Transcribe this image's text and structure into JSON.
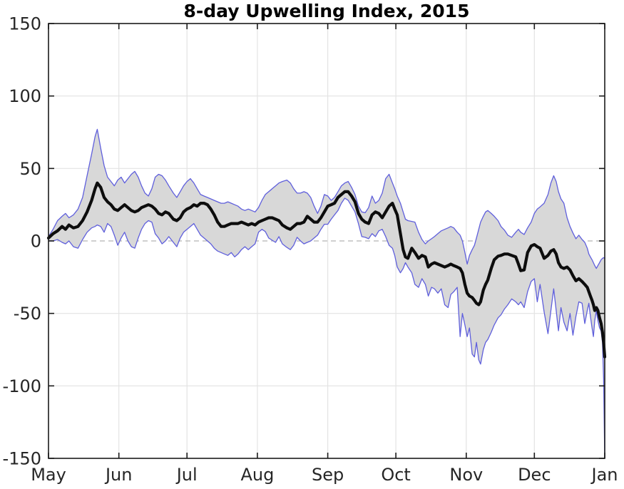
{
  "chart_data": {
    "type": "line",
    "title": "8-day Upwelling Index, 2015",
    "xlabel": "",
    "ylabel": "",
    "ylim": [
      -150,
      150
    ],
    "yticks": [
      -150,
      -100,
      -50,
      0,
      50,
      100,
      150
    ],
    "ytick_labels": [
      "-150",
      "-100",
      "-50",
      "0",
      "50",
      "100",
      "150"
    ],
    "x_unit": "days since May 1, 2015",
    "x_tick_days": [
      0,
      31,
      61,
      92,
      123,
      153,
      184,
      214,
      245
    ],
    "x_tick_labels": [
      "May",
      "Jun",
      "Jul",
      "Aug",
      "Sep",
      "Oct",
      "Nov",
      "Dec",
      "Jan"
    ],
    "grid": true,
    "zero_line": {
      "value": 0,
      "style": "dashed"
    },
    "legend": "none",
    "series_meta": [
      {
        "name": "envelope-lower",
        "style": "thin-blue-line"
      },
      {
        "name": "mean-8day-index",
        "style": "thick-black-line"
      },
      {
        "name": "envelope-upper",
        "style": "thin-blue-line"
      },
      {
        "name": "uncertainty-band",
        "style": "gray-fill-between-envelopes"
      }
    ],
    "point_format": [
      "day",
      "lower",
      "mean",
      "upper"
    ],
    "points": [
      [
        0,
        0,
        2,
        3
      ],
      [
        2,
        0,
        5,
        8
      ],
      [
        4,
        1,
        7,
        14
      ],
      [
        6,
        -1,
        10,
        17
      ],
      [
        7.5,
        -2,
        8,
        19
      ],
      [
        9,
        0,
        11,
        16
      ],
      [
        11,
        -4,
        9,
        18
      ],
      [
        13,
        -5,
        10,
        22
      ],
      [
        15,
        1,
        14,
        30
      ],
      [
        17,
        6,
        20,
        45
      ],
      [
        19,
        9,
        28,
        60
      ],
      [
        20.5,
        10,
        36,
        72
      ],
      [
        21.5,
        11,
        40,
        77
      ],
      [
        23,
        10,
        37,
        64
      ],
      [
        24.5,
        6,
        30,
        52
      ],
      [
        26,
        12,
        27,
        44
      ],
      [
        27.5,
        10,
        25,
        41
      ],
      [
        29,
        4,
        22,
        38
      ],
      [
        30.5,
        -3,
        21,
        42
      ],
      [
        32,
        2,
        23,
        44
      ],
      [
        33.5,
        6,
        25,
        40
      ],
      [
        35,
        0,
        23,
        43
      ],
      [
        36.5,
        -4,
        21,
        46
      ],
      [
        38,
        -5,
        20,
        48
      ],
      [
        39.5,
        2,
        21,
        44
      ],
      [
        41,
        8,
        23,
        38
      ],
      [
        42.5,
        12,
        24,
        33
      ],
      [
        44,
        14,
        25,
        31
      ],
      [
        45.5,
        13,
        24,
        36
      ],
      [
        47,
        5,
        22,
        44
      ],
      [
        48.5,
        2,
        19,
        46
      ],
      [
        50,
        -2,
        18,
        45
      ],
      [
        51.5,
        0,
        20,
        42
      ],
      [
        53,
        3,
        19,
        38
      ],
      [
        55,
        -1,
        15,
        33
      ],
      [
        56.5,
        -4,
        14,
        30
      ],
      [
        58,
        2,
        16,
        34
      ],
      [
        59.5,
        6,
        20,
        38
      ],
      [
        61,
        8,
        22,
        41
      ],
      [
        62.5,
        10,
        23,
        43
      ],
      [
        64,
        12,
        25,
        40
      ],
      [
        65.5,
        8,
        24,
        36
      ],
      [
        67,
        4,
        26,
        32
      ],
      [
        68.5,
        2,
        26,
        31
      ],
      [
        70,
        0,
        25,
        30
      ],
      [
        71.5,
        -2,
        22,
        29
      ],
      [
        73,
        -5,
        18,
        28
      ],
      [
        74.5,
        -7,
        13,
        27
      ],
      [
        76,
        -8,
        10,
        26
      ],
      [
        77.5,
        -9,
        10,
        26
      ],
      [
        79,
        -10,
        11,
        27
      ],
      [
        80.5,
        -8,
        12,
        26
      ],
      [
        82,
        -11,
        12,
        25
      ],
      [
        83.5,
        -9,
        12,
        24
      ],
      [
        85,
        -6,
        13,
        22
      ],
      [
        86.5,
        -4,
        12,
        21
      ],
      [
        88,
        -6,
        11,
        22
      ],
      [
        89.5,
        -4,
        12,
        21
      ],
      [
        91,
        -2,
        11,
        20
      ],
      [
        92.5,
        6,
        13,
        23
      ],
      [
        94,
        8,
        14,
        28
      ],
      [
        95.5,
        6.5,
        15,
        32
      ],
      [
        97,
        2,
        16,
        34
      ],
      [
        98.5,
        0.5,
        16,
        36
      ],
      [
        100,
        -1,
        15,
        38
      ],
      [
        101.5,
        3,
        14,
        40
      ],
      [
        103,
        -2,
        11,
        41
      ],
      [
        105,
        -4.5,
        9,
        42
      ],
      [
        106.5,
        -6,
        8,
        40
      ],
      [
        108,
        -3,
        10,
        36
      ],
      [
        109.5,
        2.5,
        12,
        33
      ],
      [
        111,
        0,
        12,
        33
      ],
      [
        112.5,
        -2,
        13,
        34
      ],
      [
        114,
        -1,
        17,
        33
      ],
      [
        115.5,
        0,
        15,
        30
      ],
      [
        117,
        2,
        13,
        24
      ],
      [
        118.5,
        4,
        13,
        19
      ],
      [
        120,
        8,
        16,
        24
      ],
      [
        121.5,
        11.5,
        20,
        32
      ],
      [
        123,
        11.5,
        24,
        31
      ],
      [
        124.5,
        15,
        25,
        28
      ],
      [
        126,
        18,
        26,
        30
      ],
      [
        127.5,
        21,
        30,
        34
      ],
      [
        129,
        26,
        32,
        38
      ],
      [
        130.5,
        29.5,
        34,
        40
      ],
      [
        132,
        28,
        34,
        41
      ],
      [
        133.5,
        24,
        31,
        37
      ],
      [
        135,
        20,
        27,
        32
      ],
      [
        136.5,
        12,
        19,
        24
      ],
      [
        138,
        3,
        15,
        20
      ],
      [
        139.5,
        2.5,
        13,
        19.5
      ],
      [
        141,
        1.5,
        12,
        23
      ],
      [
        142.5,
        5,
        18,
        31
      ],
      [
        144,
        3,
        20,
        26
      ],
      [
        145.5,
        7,
        19,
        28
      ],
      [
        147,
        8,
        16,
        33
      ],
      [
        148.5,
        3,
        20,
        43
      ],
      [
        150,
        -3,
        24,
        46
      ],
      [
        151.5,
        -5,
        26,
        40
      ],
      [
        152.5,
        -10,
        22,
        36
      ],
      [
        153.6,
        -18,
        18,
        31
      ],
      [
        155,
        -22,
        5,
        26
      ],
      [
        156.2,
        -19,
        -6,
        20
      ],
      [
        157.2,
        -15,
        -11,
        15
      ],
      [
        158.3,
        -18,
        -12,
        14
      ],
      [
        160,
        -22,
        -5,
        13.5
      ],
      [
        161.4,
        -30,
        -8,
        13
      ],
      [
        163,
        -32,
        -12,
        6
      ],
      [
        164.5,
        -26,
        -10,
        1
      ],
      [
        166,
        -30,
        -11,
        -2
      ],
      [
        167.3,
        -38,
        -18,
        0
      ],
      [
        168.7,
        -32,
        -16,
        1.5
      ],
      [
        170,
        -33,
        -15,
        3
      ],
      [
        171.5,
        -36,
        -16,
        5
      ],
      [
        173,
        -33,
        -17,
        7
      ],
      [
        174.5,
        -44,
        -18,
        8
      ],
      [
        176,
        -46,
        -17,
        9
      ],
      [
        177.2,
        -37,
        -16,
        10
      ],
      [
        178.5,
        -35,
        -17,
        9
      ],
      [
        180,
        -32,
        -18,
        6
      ],
      [
        181.3,
        -66,
        -19,
        4
      ],
      [
        182.3,
        -50,
        -22,
        0
      ],
      [
        183.4,
        -58,
        -30,
        -8
      ],
      [
        184.4,
        -66,
        -36,
        -16
      ],
      [
        185.4,
        -60,
        -38,
        -10
      ],
      [
        186.6,
        -78,
        -39,
        -6
      ],
      [
        187.6,
        -80,
        -41,
        -3
      ],
      [
        188.5,
        -70,
        -43,
        2
      ],
      [
        189.5,
        -82,
        -44,
        8
      ],
      [
        190.3,
        -85,
        -42,
        13
      ],
      [
        191.5,
        -75,
        -34,
        17
      ],
      [
        192.5,
        -70,
        -30,
        20
      ],
      [
        193.5,
        -68,
        -27,
        21
      ],
      [
        195,
        -63,
        -19,
        19
      ],
      [
        196.3,
        -58,
        -13,
        17
      ],
      [
        198,
        -53,
        -10.5,
        14
      ],
      [
        199.3,
        -51,
        -10,
        10
      ],
      [
        200.8,
        -47,
        -9,
        7.5
      ],
      [
        202.3,
        -44,
        -9,
        4
      ],
      [
        204,
        -40,
        -10,
        2.5
      ],
      [
        205.8,
        -42,
        -11,
        6
      ],
      [
        207,
        -44,
        -16,
        8
      ],
      [
        208,
        -42,
        -20.5,
        6
      ],
      [
        209.5,
        -46,
        -20,
        4.5
      ],
      [
        211,
        -35,
        -8,
        9
      ],
      [
        212.6,
        -28,
        -3.5,
        13
      ],
      [
        214,
        -26,
        -2.5,
        19
      ],
      [
        215.3,
        -42,
        -4,
        22
      ],
      [
        216.5,
        -30,
        -5,
        23.5
      ],
      [
        218.3,
        -49,
        -12,
        26
      ],
      [
        220,
        -64,
        -10,
        32
      ],
      [
        221.3,
        -48,
        -7,
        40
      ],
      [
        222.5,
        -33,
        -6,
        45
      ],
      [
        223.6,
        -48,
        -9,
        41
      ],
      [
        224.6,
        -62,
        -15,
        34
      ],
      [
        225.7,
        -46,
        -18,
        29
      ],
      [
        227,
        -56,
        -19,
        26
      ],
      [
        228.4,
        -62,
        -18,
        16
      ],
      [
        229.7,
        -50,
        -20,
        10
      ],
      [
        231,
        -65,
        -24,
        5.5
      ],
      [
        232.3,
        -52,
        -27.5,
        1.5
      ],
      [
        233.6,
        -42,
        -26,
        4
      ],
      [
        235,
        -43,
        -28,
        1
      ],
      [
        236.2,
        -57,
        -30,
        -1
      ],
      [
        237.3,
        -48,
        -32,
        -5
      ],
      [
        238,
        -43,
        -35,
        -9
      ],
      [
        238.7,
        -52,
        -38,
        -11
      ],
      [
        239.4,
        -60,
        -41,
        -13
      ],
      [
        240,
        -66,
        -44,
        -15
      ],
      [
        240.6,
        -55,
        -48,
        -17
      ],
      [
        241.3,
        -48,
        -46,
        -19
      ],
      [
        242,
        -55,
        -48,
        -17
      ],
      [
        242.7,
        -60,
        -53,
        -15
      ],
      [
        243.4,
        -62,
        -57,
        -13
      ],
      [
        244,
        -70,
        -63,
        -12
      ],
      [
        244.5,
        -95,
        -70,
        -11.5
      ],
      [
        245,
        -150,
        -80,
        -12
      ]
    ]
  },
  "colors": {
    "band": "#d8d8d8",
    "envelope": "#5f5fdc",
    "mean": "#0d0d0d",
    "grid": "#e3e3e3",
    "zero_line": "#b5b5b5",
    "axis": "#1a1a1a",
    "text": "#262626"
  }
}
